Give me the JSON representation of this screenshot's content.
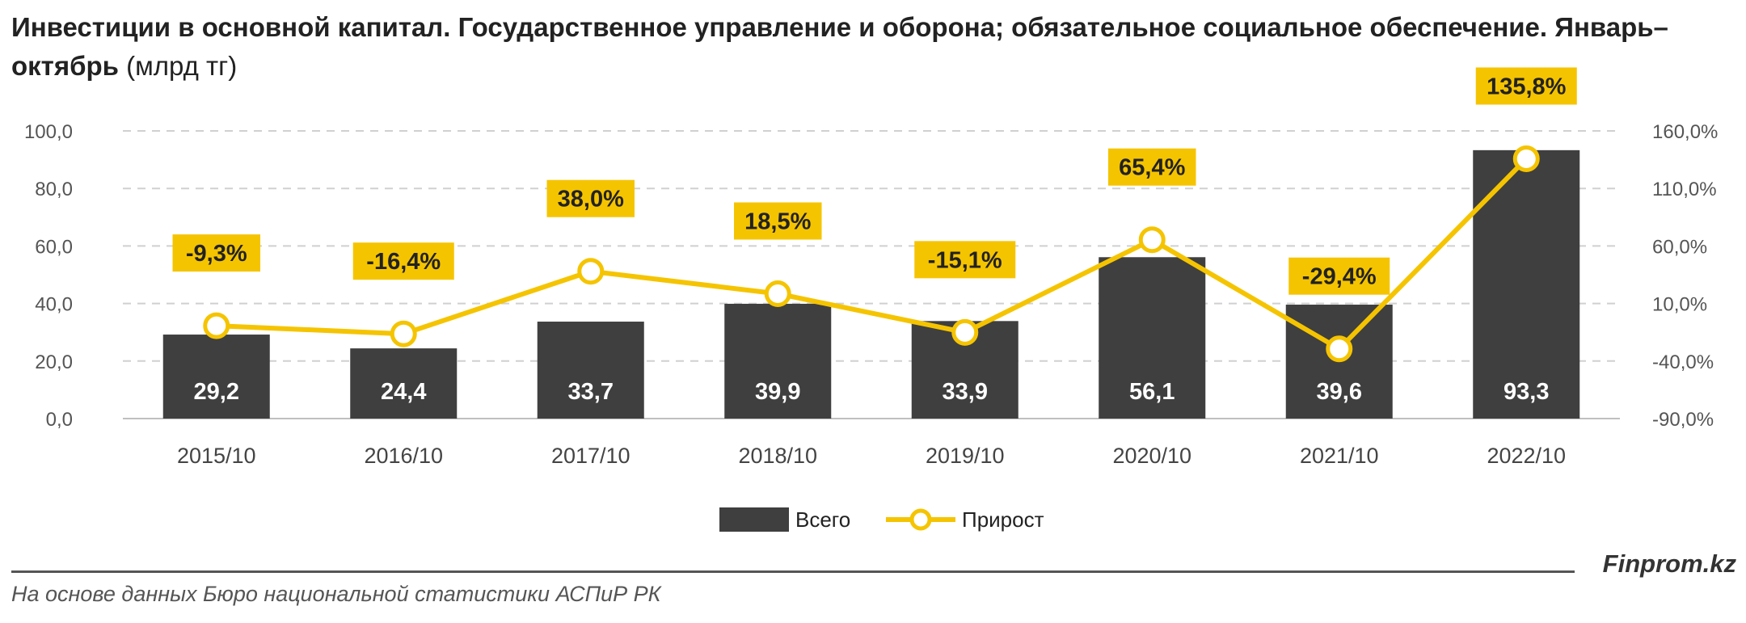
{
  "title": {
    "bold": "Инвестиции в основной капитал. Государственное управление и оборона; обязательное социальное обеспечение. Январь–октябрь",
    "unit": "(млрд тг)"
  },
  "footer": {
    "source": "На основе данных Бюро национальной статистики АСПиР РК",
    "brand": "Finprom.kz"
  },
  "colors": {
    "bar": "#3f3f3f",
    "line": "#f5c400",
    "label_bg": "#f5c400"
  },
  "chart_data": {
    "type": "bar",
    "categories": [
      "2015/10",
      "2016/10",
      "2017/10",
      "2018/10",
      "2019/10",
      "2020/10",
      "2021/10",
      "2022/10"
    ],
    "series": [
      {
        "name": "Всего",
        "type": "bar",
        "axis": "left",
        "values": [
          29.2,
          24.4,
          33.7,
          39.9,
          33.9,
          56.1,
          39.6,
          93.3
        ],
        "labels": [
          "29,2",
          "24,4",
          "33,7",
          "39,9",
          "33,9",
          "56,1",
          "39,6",
          "93,3"
        ]
      },
      {
        "name": "Прирост",
        "type": "line",
        "axis": "right",
        "values": [
          -9.3,
          -16.4,
          38.0,
          18.5,
          -15.1,
          65.4,
          -29.4,
          135.8
        ],
        "labels": [
          "-9,3%",
          "-16,4%",
          "38,0%",
          "18,5%",
          "-15,1%",
          "65,4%",
          "-29,4%",
          "135,8%"
        ]
      }
    ],
    "y_left": {
      "ylim": [
        0,
        100
      ],
      "ticks": [
        "0,0",
        "20,0",
        "40,0",
        "60,0",
        "80,0",
        "100,0"
      ]
    },
    "y_right": {
      "ylim": [
        -90,
        160
      ],
      "ticks": [
        "-90,0%",
        "-40,0%",
        "10,0%",
        "60,0%",
        "110,0%",
        "160,0%"
      ]
    },
    "grid": true,
    "legend": "bottom"
  }
}
